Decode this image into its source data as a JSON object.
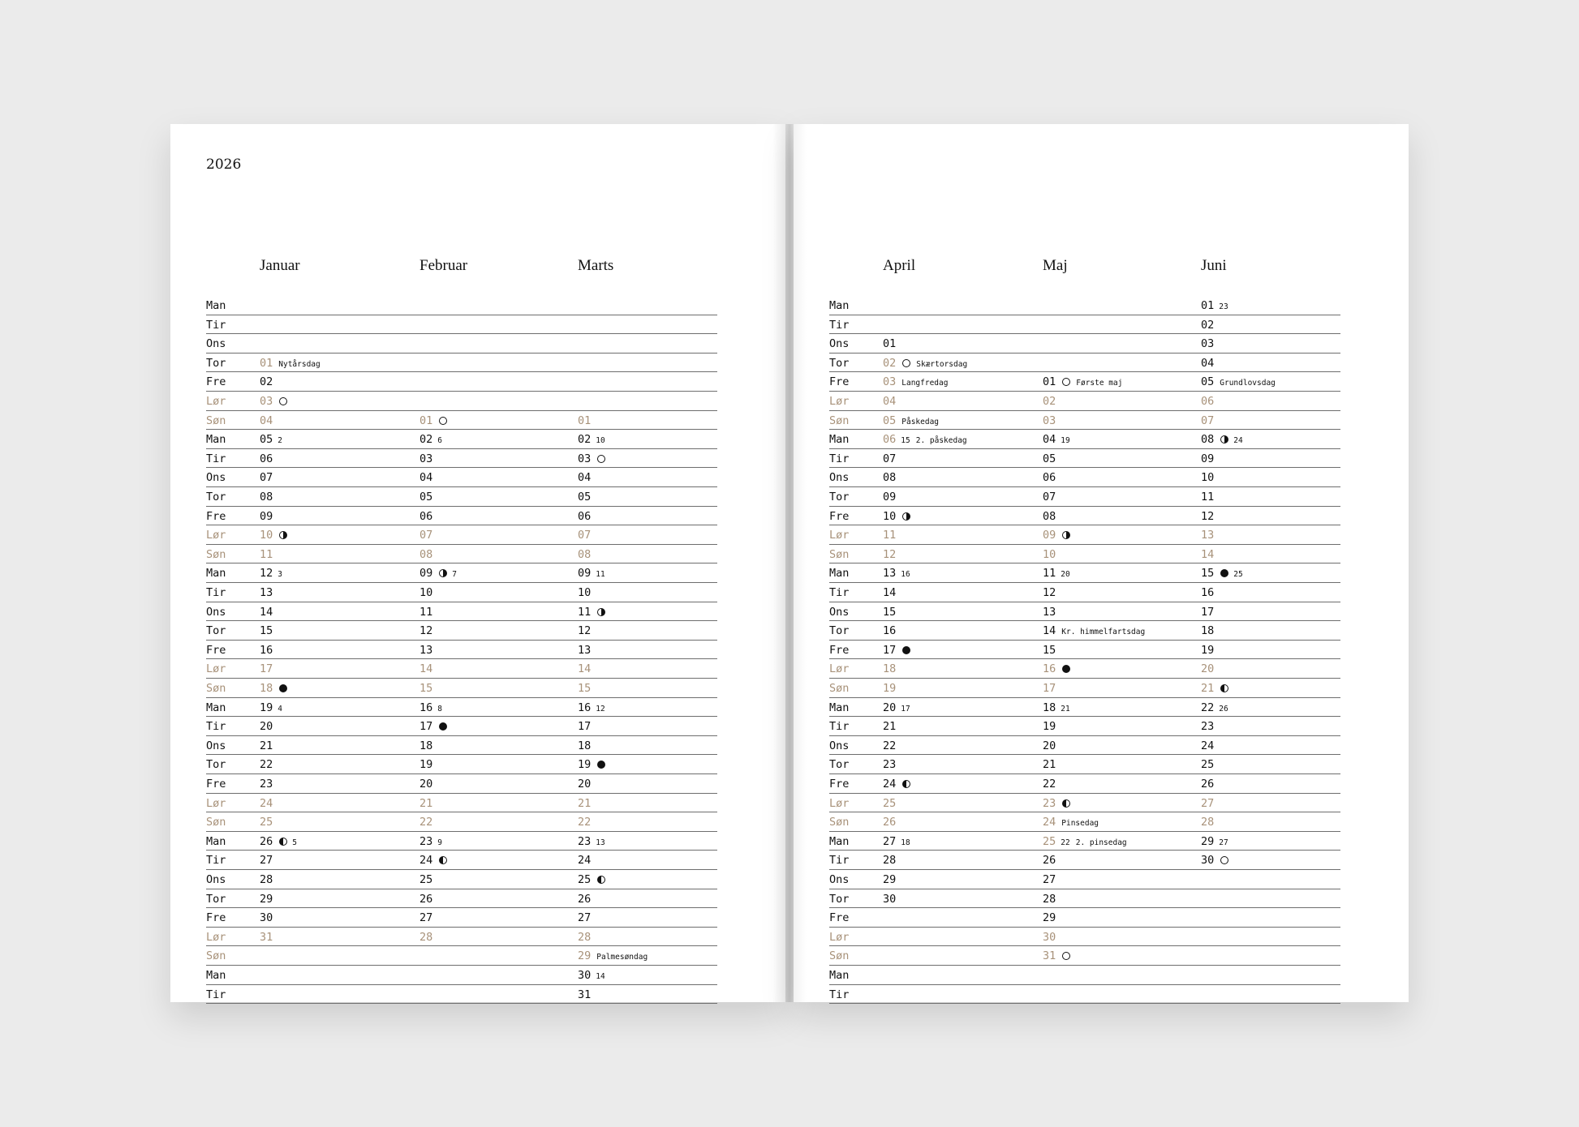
{
  "year": "2026",
  "weekdays": [
    "Man",
    "Tir",
    "Ons",
    "Tor",
    "Fre",
    "Lør",
    "Søn",
    "Man",
    "Tir",
    "Ons",
    "Tor",
    "Fre",
    "Lør",
    "Søn",
    "Man",
    "Tir",
    "Ons",
    "Tor",
    "Fre",
    "Lør",
    "Søn",
    "Man",
    "Tir",
    "Ons",
    "Tor",
    "Fre",
    "Lør",
    "Søn",
    "Man",
    "Tir",
    "Ons",
    "Tor",
    "Fre",
    "Lør",
    "Søn",
    "Man",
    "Tir"
  ],
  "weekend_days": [
    "Lør",
    "Søn"
  ],
  "colors": {
    "weekend": "#a8927a",
    "text": "#111111",
    "rule": "#6e6e6e"
  },
  "moon_icons": {
    "full": "full-moon-icon",
    "new": "new-moon-icon",
    "right": "first-quarter-moon-icon",
    "left": "last-quarter-moon-icon"
  },
  "pages": [
    {
      "months": [
        {
          "name": "Januar",
          "first_weekday": "Tor",
          "days": 31,
          "marks": {
            "01": {
              "holiday": true,
              "note": "Nytårsdag"
            },
            "03": {
              "moon": "full"
            },
            "05": {
              "week": "2"
            },
            "10": {
              "moon": "right"
            },
            "12": {
              "week": "3"
            },
            "18": {
              "moon": "new"
            },
            "19": {
              "week": "4"
            },
            "26": {
              "moon": "left",
              "week": "5"
            }
          }
        },
        {
          "name": "Februar",
          "first_weekday": "Søn",
          "days": 28,
          "marks": {
            "01": {
              "moon": "full"
            },
            "02": {
              "week": "6"
            },
            "09": {
              "moon": "right",
              "week": "7"
            },
            "16": {
              "week": "8"
            },
            "17": {
              "moon": "new"
            },
            "23": {
              "week": "9"
            },
            "24": {
              "moon": "left"
            }
          }
        },
        {
          "name": "Marts",
          "first_weekday": "Søn",
          "days": 31,
          "marks": {
            "02": {
              "week": "10"
            },
            "03": {
              "moon": "full"
            },
            "09": {
              "week": "11"
            },
            "11": {
              "moon": "right"
            },
            "16": {
              "week": "12"
            },
            "19": {
              "moon": "new"
            },
            "23": {
              "week": "13"
            },
            "25": {
              "moon": "left"
            },
            "29": {
              "note": "Palmesøndag"
            },
            "30": {
              "week": "14"
            }
          }
        }
      ]
    },
    {
      "months": [
        {
          "name": "April",
          "first_weekday": "Ons",
          "days": 30,
          "marks": {
            "02": {
              "holiday": true,
              "moon": "full",
              "note": "Skærtorsdag"
            },
            "03": {
              "holiday": true,
              "note": "Langfredag"
            },
            "05": {
              "note": "Påskedag"
            },
            "06": {
              "holiday": true,
              "week": "15",
              "note": "2. påskedag"
            },
            "10": {
              "moon": "right"
            },
            "13": {
              "week": "16"
            },
            "17": {
              "moon": "new"
            },
            "20": {
              "week": "17"
            },
            "24": {
              "moon": "left"
            },
            "27": {
              "week": "18"
            }
          }
        },
        {
          "name": "Maj",
          "first_weekday": "Fre",
          "days": 31,
          "marks": {
            "01": {
              "moon": "full",
              "note": "Første maj"
            },
            "04": {
              "week": "19"
            },
            "09": {
              "moon": "right"
            },
            "11": {
              "week": "20"
            },
            "14": {
              "note": "Kr. himmelfartsdag"
            },
            "16": {
              "moon": "new"
            },
            "18": {
              "week": "21"
            },
            "23": {
              "moon": "left"
            },
            "24": {
              "note": "Pinsedag"
            },
            "25": {
              "holiday": true,
              "week": "22",
              "note": "2. pinsedag"
            },
            "31": {
              "moon": "full"
            }
          }
        },
        {
          "name": "Juni",
          "first_weekday": "Man",
          "days": 30,
          "marks": {
            "01": {
              "week": "23"
            },
            "05": {
              "note": "Grundlovsdag"
            },
            "08": {
              "moon": "right",
              "week": "24"
            },
            "15": {
              "moon": "new",
              "week": "25"
            },
            "21": {
              "moon": "left"
            },
            "22": {
              "week": "26"
            },
            "29": {
              "week": "27"
            },
            "30": {
              "moon": "full"
            }
          }
        }
      ]
    }
  ]
}
